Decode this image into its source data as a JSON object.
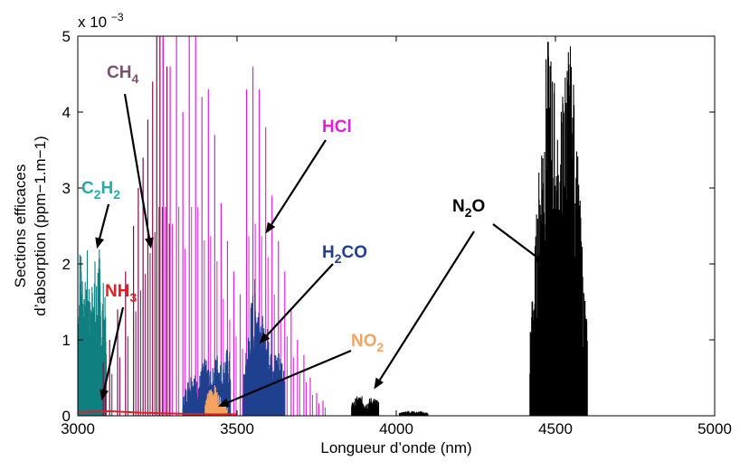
{
  "chart_data": {
    "type": "line",
    "title": "",
    "xlabel": "Longueur d’onde (nm)",
    "ylabel_line1": "Sections efficaces",
    "ylabel_line2": "d’absorption (ppm−1.m−1)",
    "y_multiplier_text": "x 10",
    "y_multiplier_exp": "−3",
    "xlim": [
      3000,
      5000
    ],
    "ylim": [
      0,
      5
    ],
    "xticks": [
      "3000",
      "3500",
      "4000",
      "4500",
      "5000"
    ],
    "yticks": [
      "0",
      "1",
      "2",
      "3",
      "4",
      "5"
    ],
    "grid": false,
    "legend": "none (species labelled with arrows)",
    "series": [
      {
        "name": "C2H2",
        "color": "#0f7f7f",
        "kind": "dense-band",
        "bands": [
          {
            "x0": 3000,
            "x1": 3090,
            "peak": 2.5,
            "peaks": [
              [
                3010,
                2.45
              ],
              [
                3030,
                2.2
              ],
              [
                3050,
                2.25
              ],
              [
                3065,
                2.3
              ],
              [
                3080,
                1.8
              ]
            ]
          }
        ]
      },
      {
        "name": "CH4",
        "color": "#7f0f4f",
        "kind": "lines",
        "x": [
          3080,
          3100,
          3125,
          3150,
          3175,
          3190,
          3205,
          3220,
          3235,
          3248,
          3258,
          3268,
          3280
        ],
        "y": [
          0.7,
          1.0,
          1.4,
          1.9,
          2.5,
          3.0,
          3.4,
          3.9,
          4.4,
          5.0,
          5.0,
          5.0,
          4.6
        ]
      },
      {
        "name": "HCl",
        "color": "#e020e0",
        "kind": "lines",
        "x": [
          3268,
          3290,
          3310,
          3330,
          3350,
          3370,
          3390,
          3410,
          3430,
          3450,
          3470,
          3490,
          3510,
          3530,
          3550,
          3570,
          3590,
          3610,
          3630,
          3650,
          3670,
          3690,
          3710,
          3730,
          3750,
          3770
        ],
        "y": [
          5.0,
          4.6,
          5.0,
          4.0,
          5.0,
          5.0,
          4.2,
          4.3,
          3.7,
          2.8,
          2.3,
          1.9,
          1.6,
          4.3,
          4.6,
          4.3,
          3.8,
          2.9,
          2.3,
          1.9,
          1.4,
          1.0,
          0.8,
          0.5,
          0.3,
          0.2
        ]
      },
      {
        "name": "H2CO",
        "color": "#1f3f8f",
        "kind": "dense-band",
        "bands": [
          {
            "x0": 3330,
            "x1": 3480,
            "peak": 0.9,
            "peaks": [
              [
                3360,
                0.6
              ],
              [
                3400,
                0.75
              ],
              [
                3440,
                0.85
              ],
              [
                3470,
                0.9
              ]
            ]
          },
          {
            "x0": 3520,
            "x1": 3650,
            "peak": 1.85,
            "peaks": [
              [
                3560,
                1.85
              ],
              [
                3600,
                1.2
              ],
              [
                3630,
                0.9
              ]
            ]
          }
        ]
      },
      {
        "name": "NO2",
        "color": "#f4a460",
        "kind": "dense-band",
        "bands": [
          {
            "x0": 3400,
            "x1": 3470,
            "peak": 0.45,
            "peaks": [
              [
                3425,
                0.42
              ],
              [
                3445,
                0.25
              ]
            ]
          }
        ]
      },
      {
        "name": "NH3",
        "color": "#e02020",
        "kind": "baseline",
        "x": [
          3000,
          3100,
          3200,
          3300,
          3400,
          3500
        ],
        "y": [
          0.05,
          0.06,
          0.04,
          0.03,
          0.02,
          0.02
        ]
      },
      {
        "name": "N2O",
        "color": "#000000",
        "kind": "dense-band",
        "bands": [
          {
            "x0": 3860,
            "x1": 3945,
            "peak": 0.27,
            "peaks": [
              [
                3885,
                0.27
              ],
              [
                3925,
                0.25
              ]
            ]
          },
          {
            "x0": 4010,
            "x1": 4100,
            "peak": 0.07,
            "peaks": [
              [
                4040,
                0.07
              ],
              [
                4075,
                0.06
              ]
            ]
          },
          {
            "x0": 4420,
            "x1": 4600,
            "peak": 5.0,
            "peaks": [
              [
                4480,
                5.0
              ],
              [
                4510,
                1.8
              ],
              [
                4540,
                5.0
              ]
            ]
          }
        ]
      }
    ],
    "annotations": [
      {
        "series": "CH4",
        "main": "CH",
        "sub": "4",
        "color": "#7f4f6f",
        "point": [
          3230,
          2.2
        ]
      },
      {
        "series": "HCl",
        "main": "HCl",
        "sub": "",
        "color": "#e020e0",
        "point": [
          3590,
          2.4
        ]
      },
      {
        "series": "C2H2",
        "main": "C",
        "sub": "2",
        "main2": "H",
        "sub2": "2",
        "color": "#20b0a8",
        "point": [
          3060,
          2.2
        ]
      },
      {
        "series": "NH3",
        "main": "NH",
        "sub": "3",
        "color": "#e02020",
        "point": [
          3075,
          0.2
        ]
      },
      {
        "series": "H2CO",
        "main": "H",
        "sub": "2",
        "main2": "CO",
        "sub2": "",
        "color": "#1f3f8f",
        "point": [
          3570,
          0.95
        ]
      },
      {
        "series": "NO2",
        "main": "NO",
        "sub": "2",
        "color": "#f4a460",
        "point": [
          3440,
          0.12
        ]
      },
      {
        "series": "N2O",
        "main": "N",
        "sub": "2",
        "main2": "O",
        "sub2": "",
        "color": "#000000",
        "point": [
          3930,
          0.35
        ],
        "point2": [
          4470,
          2.0
        ]
      }
    ]
  }
}
